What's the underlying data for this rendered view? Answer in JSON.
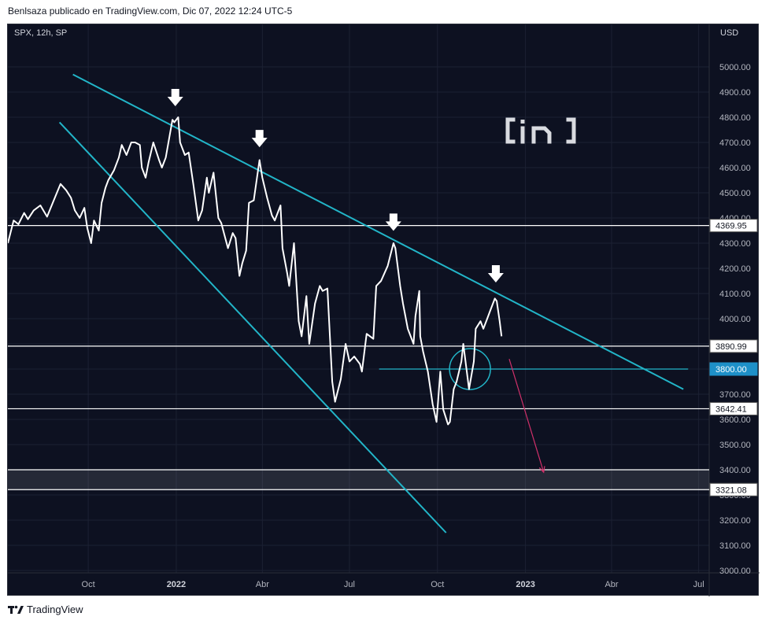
{
  "header": {
    "text": "Benlsaza publicado en TradingView.com, Dic 07, 2022 12:24 UTC-5"
  },
  "symbol": {
    "label": "SPX, 12h, SP"
  },
  "footer": {
    "brand": "TradingView"
  },
  "colors": {
    "background": "#0d1121",
    "price": "#ffffff",
    "trend": "#22b5c8",
    "projection": "#d0306a",
    "grid": "#1c2133",
    "axis_text": "#b2b5be"
  },
  "watermark": "in-logo",
  "chart_data": {
    "type": "line",
    "title": "",
    "currency": "USD",
    "ylim": [
      3000,
      5100
    ],
    "y_ticks": [
      3000,
      3100,
      3200,
      3300,
      3400,
      3500,
      3600,
      3700,
      3800,
      3900,
      4000,
      4100,
      4200,
      4300,
      4400,
      4500,
      4600,
      4700,
      4800,
      4900,
      5000
    ],
    "x_ticks": [
      {
        "label": "Oct",
        "date": "2021-10-01"
      },
      {
        "label": "2022",
        "date": "2022-01-01"
      },
      {
        "label": "Abr",
        "date": "2022-04-01"
      },
      {
        "label": "Jul",
        "date": "2022-07-01"
      },
      {
        "label": "Oct",
        "date": "2022-10-01"
      },
      {
        "label": "2023",
        "date": "2023-01-01"
      },
      {
        "label": "Abr",
        "date": "2023-04-01"
      },
      {
        "label": "Jul",
        "date": "2023-07-01"
      }
    ],
    "xlim": [
      "2021-07-09",
      "2023-07-12"
    ],
    "series": [
      {
        "values": [
          [
            "2021-07-09",
            4300
          ],
          [
            "2021-07-15",
            4390
          ],
          [
            "2021-07-20",
            4375
          ],
          [
            "2021-07-26",
            4420
          ],
          [
            "2021-07-30",
            4395
          ],
          [
            "2021-08-05",
            4430
          ],
          [
            "2021-08-12",
            4450
          ],
          [
            "2021-08-19",
            4405
          ],
          [
            "2021-08-26",
            4470
          ],
          [
            "2021-09-02",
            4535
          ],
          [
            "2021-09-08",
            4510
          ],
          [
            "2021-09-13",
            4480
          ],
          [
            "2021-09-17",
            4430
          ],
          [
            "2021-09-22",
            4400
          ],
          [
            "2021-09-27",
            4440
          ],
          [
            "2021-09-30",
            4360
          ],
          [
            "2021-10-04",
            4300
          ],
          [
            "2021-10-07",
            4390
          ],
          [
            "2021-10-12",
            4350
          ],
          [
            "2021-10-15",
            4460
          ],
          [
            "2021-10-19",
            4520
          ],
          [
            "2021-10-22",
            4550
          ],
          [
            "2021-10-28",
            4590
          ],
          [
            "2021-11-02",
            4640
          ],
          [
            "2021-11-05",
            4690
          ],
          [
            "2021-11-10",
            4650
          ],
          [
            "2021-11-15",
            4700
          ],
          [
            "2021-11-19",
            4700
          ],
          [
            "2021-11-24",
            4690
          ],
          [
            "2021-11-26",
            4600
          ],
          [
            "2021-11-30",
            4560
          ],
          [
            "2021-12-03",
            4620
          ],
          [
            "2021-12-08",
            4700
          ],
          [
            "2021-12-14",
            4630
          ],
          [
            "2021-12-17",
            4600
          ],
          [
            "2021-12-21",
            4640
          ],
          [
            "2021-12-28",
            4790
          ],
          [
            "2021-12-30",
            4780
          ],
          [
            "2022-01-03",
            4800
          ],
          [
            "2022-01-05",
            4700
          ],
          [
            "2022-01-10",
            4650
          ],
          [
            "2022-01-14",
            4660
          ],
          [
            "2022-01-19",
            4530
          ],
          [
            "2022-01-24",
            4390
          ],
          [
            "2022-01-28",
            4430
          ],
          [
            "2022-02-02",
            4560
          ],
          [
            "2022-02-04",
            4500
          ],
          [
            "2022-02-09",
            4580
          ],
          [
            "2022-02-14",
            4400
          ],
          [
            "2022-02-17",
            4380
          ],
          [
            "2022-02-24",
            4280
          ],
          [
            "2022-03-01",
            4340
          ],
          [
            "2022-03-04",
            4320
          ],
          [
            "2022-03-08",
            4170
          ],
          [
            "2022-03-11",
            4220
          ],
          [
            "2022-03-15",
            4270
          ],
          [
            "2022-03-18",
            4460
          ],
          [
            "2022-03-23",
            4470
          ],
          [
            "2022-03-29",
            4630
          ],
          [
            "2022-04-01",
            4560
          ],
          [
            "2022-04-06",
            4480
          ],
          [
            "2022-04-11",
            4410
          ],
          [
            "2022-04-14",
            4390
          ],
          [
            "2022-04-20",
            4450
          ],
          [
            "2022-04-22",
            4280
          ],
          [
            "2022-04-27",
            4180
          ],
          [
            "2022-04-29",
            4130
          ],
          [
            "2022-05-04",
            4300
          ],
          [
            "2022-05-09",
            3990
          ],
          [
            "2022-05-12",
            3930
          ],
          [
            "2022-05-17",
            4090
          ],
          [
            "2022-05-20",
            3900
          ],
          [
            "2022-05-26",
            4060
          ],
          [
            "2022-05-31",
            4130
          ],
          [
            "2022-06-03",
            4110
          ],
          [
            "2022-06-08",
            4120
          ],
          [
            "2022-06-13",
            3750
          ],
          [
            "2022-06-16",
            3670
          ],
          [
            "2022-06-22",
            3760
          ],
          [
            "2022-06-27",
            3900
          ],
          [
            "2022-07-01",
            3830
          ],
          [
            "2022-07-06",
            3850
          ],
          [
            "2022-07-12",
            3820
          ],
          [
            "2022-07-14",
            3790
          ],
          [
            "2022-07-19",
            3940
          ],
          [
            "2022-07-26",
            3920
          ],
          [
            "2022-07-29",
            4130
          ],
          [
            "2022-08-03",
            4150
          ],
          [
            "2022-08-10",
            4210
          ],
          [
            "2022-08-16",
            4300
          ],
          [
            "2022-08-18",
            4280
          ],
          [
            "2022-08-23",
            4130
          ],
          [
            "2022-08-26",
            4060
          ],
          [
            "2022-08-31",
            3960
          ],
          [
            "2022-09-06",
            3900
          ],
          [
            "2022-09-08",
            4010
          ],
          [
            "2022-09-12",
            4110
          ],
          [
            "2022-09-13",
            3930
          ],
          [
            "2022-09-16",
            3870
          ],
          [
            "2022-09-21",
            3790
          ],
          [
            "2022-09-26",
            3660
          ],
          [
            "2022-09-30",
            3590
          ],
          [
            "2022-10-04",
            3790
          ],
          [
            "2022-10-07",
            3640
          ],
          [
            "2022-10-12",
            3580
          ],
          [
            "2022-10-14",
            3590
          ],
          [
            "2022-10-18",
            3720
          ],
          [
            "2022-10-21",
            3750
          ],
          [
            "2022-10-26",
            3830
          ],
          [
            "2022-10-28",
            3900
          ],
          [
            "2022-11-03",
            3720
          ],
          [
            "2022-11-08",
            3830
          ],
          [
            "2022-11-10",
            3960
          ],
          [
            "2022-11-15",
            3990
          ],
          [
            "2022-11-18",
            3960
          ],
          [
            "2022-11-22",
            4000
          ],
          [
            "2022-11-25",
            4030
          ],
          [
            "2022-11-30",
            4080
          ],
          [
            "2022-12-02",
            4070
          ],
          [
            "2022-12-05",
            3990
          ],
          [
            "2022-12-07",
            3930
          ]
        ]
      }
    ],
    "horizontal_levels": [
      {
        "value": 4369.95,
        "label": "4369.95"
      },
      {
        "value": 3890.99,
        "label": "3890.99"
      },
      {
        "value": 3800.0,
        "label": "3800.00"
      },
      {
        "value": 3642.41,
        "label": "3642.41"
      },
      {
        "value": 3321.08,
        "label": "3321.08"
      }
    ],
    "zone": {
      "from": 3321.08,
      "to": 3400
    },
    "trendlines": [
      {
        "from": [
          "2021-09-15",
          4970
        ],
        "to": [
          "2023-06-15",
          3720
        ]
      },
      {
        "from": [
          "2021-09-01",
          4780
        ],
        "to": [
          "2022-10-10",
          3150
        ]
      }
    ],
    "short_level_line": {
      "from": "2022-08-01",
      "to": "2023-06-20",
      "value": 3800
    },
    "circle": {
      "date": "2022-11-04",
      "value": 3800
    },
    "projection_arrow": {
      "from": [
        "2022-12-15",
        3840
      ],
      "to": [
        "2023-01-20",
        3390
      ]
    },
    "peak_markers": [
      {
        "date": "2021-12-31",
        "value": 4800
      },
      {
        "date": "2022-03-29",
        "value": 4637
      },
      {
        "date": "2022-08-16",
        "value": 4305
      },
      {
        "date": "2022-12-01",
        "value": 4100
      }
    ]
  }
}
